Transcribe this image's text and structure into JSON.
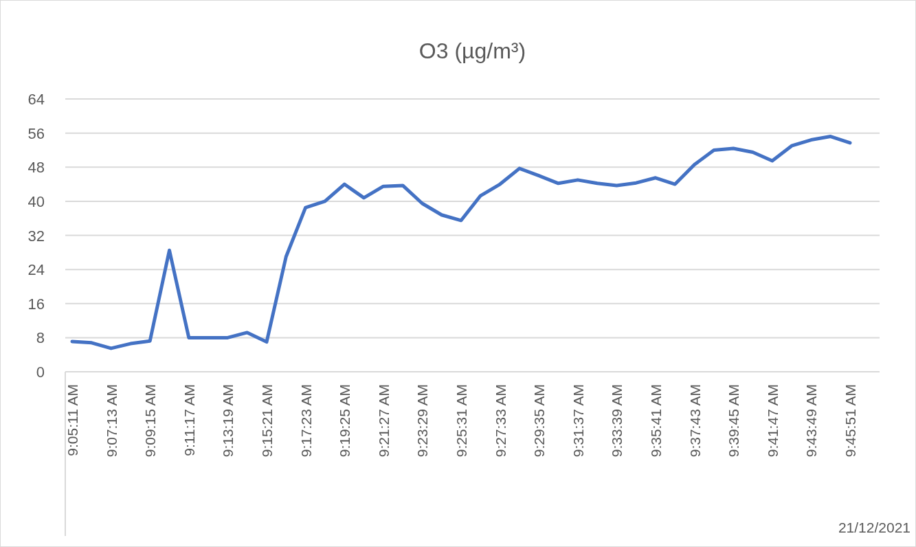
{
  "chart_data": {
    "type": "line",
    "title": "O3 (µg/m³)",
    "xlabel": "21/12/2021",
    "categories": [
      "9:05:11 AM",
      null,
      "9:07:13 AM",
      null,
      "9:09:15 AM",
      null,
      "9:11:17 AM",
      null,
      "9:13:19 AM",
      null,
      "9:15:21 AM",
      null,
      "9:17:23 AM",
      null,
      "9:19:25 AM",
      null,
      "9:21:27 AM",
      null,
      "9:23:29 AM",
      null,
      "9:25:31 AM",
      null,
      "9:27:33 AM",
      null,
      "9:29:35 AM",
      null,
      "9:31:37 AM",
      null,
      "9:33:39 AM",
      null,
      "9:35:41 AM",
      null,
      "9:37:43 AM",
      null,
      "9:39:45 AM",
      null,
      "9:41:47 AM",
      null,
      "9:43:49 AM",
      null,
      "9:45:51 AM"
    ],
    "series": [
      {
        "color": "#4472c4",
        "values": [
          7.1,
          6.8,
          5.5,
          6.6,
          7.2,
          28.5,
          8,
          8,
          8,
          9.2,
          7,
          27,
          38.5,
          40,
          44,
          40.8,
          43.5,
          43.7,
          39.5,
          36.8,
          35.5,
          41.3,
          44,
          47.7,
          46,
          44.2,
          45,
          44.2,
          43.7,
          44.3,
          45.5,
          44,
          48.6,
          52,
          52.4,
          51.5,
          49.5,
          53,
          54.4,
          55.2,
          53.7
        ]
      }
    ],
    "ylim": [
      0,
      64
    ],
    "yticks": [
      0,
      8,
      16,
      24,
      32,
      40,
      48,
      56,
      64
    ],
    "grid": "y"
  }
}
